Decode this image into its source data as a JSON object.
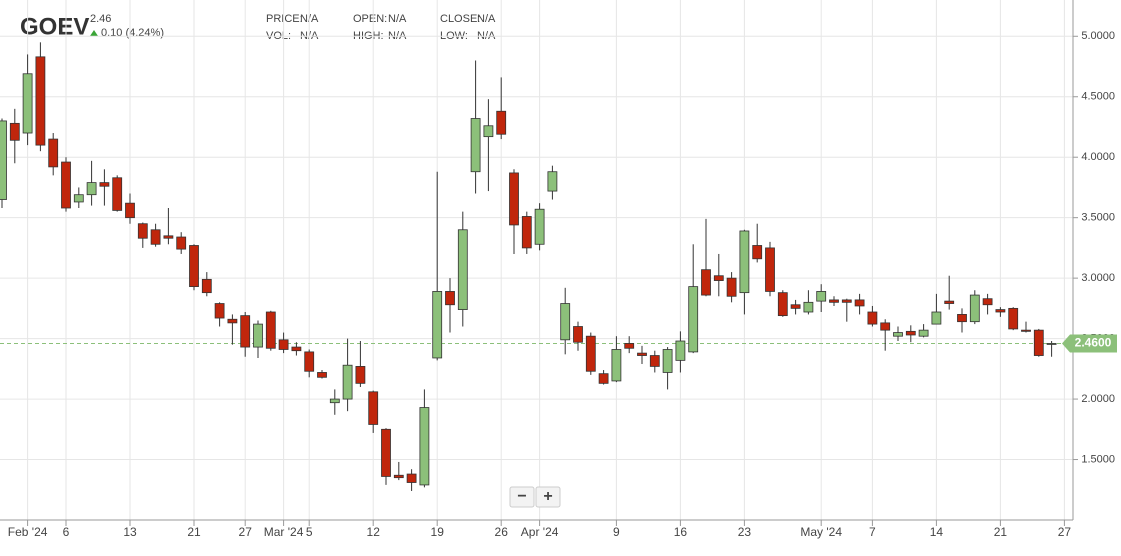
{
  "chart_data": {
    "type": "candlestick",
    "title": "GOEV",
    "price": 2.46,
    "change": "0.10 (4.24%)",
    "stats": [
      {
        "label": "PRICE:",
        "value": "N/A"
      },
      {
        "label": "VOL:",
        "value": "N/A"
      },
      {
        "label": "OPEN:",
        "value": "N/A"
      },
      {
        "label": "HIGH:",
        "value": "N/A"
      },
      {
        "label": "CLOSE:",
        "value": "N/A"
      },
      {
        "label": "LOW:",
        "value": "N/A"
      }
    ],
    "categories": [
      null,
      null,
      "Feb '24",
      null,
      null,
      "6",
      null,
      null,
      null,
      null,
      "13",
      null,
      null,
      null,
      null,
      "21",
      null,
      null,
      null,
      "27",
      null,
      null,
      "Mar '24",
      null,
      "5",
      null,
      null,
      null,
      null,
      "12",
      null,
      null,
      null,
      null,
      "19",
      null,
      null,
      null,
      null,
      "26",
      null,
      null,
      "Apr '24",
      null,
      null,
      null,
      null,
      null,
      "9",
      null,
      null,
      null,
      null,
      "16",
      null,
      null,
      null,
      null,
      "23",
      null,
      null,
      null,
      null,
      null,
      "May '24",
      null,
      null,
      null,
      "7",
      null,
      null,
      null,
      null,
      "14",
      null,
      null,
      null,
      null,
      "21",
      null,
      null,
      null,
      null,
      "27"
    ],
    "open": [
      3.65,
      4.28,
      4.2,
      4.83,
      4.15,
      3.96,
      3.63,
      3.69,
      3.79,
      3.83,
      3.62,
      3.45,
      3.4,
      3.35,
      3.34,
      3.27,
      2.99,
      2.79,
      2.66,
      2.69,
      2.43,
      2.72,
      2.49,
      2.43,
      2.39,
      2.22,
      1.97,
      2.0,
      2.27,
      2.06,
      1.75,
      1.37,
      1.38,
      1.29,
      2.34,
      2.89,
      2.74,
      3.88,
      4.17,
      4.38,
      3.87,
      3.51,
      3.28,
      3.72,
      2.49,
      2.6,
      2.52,
      2.21,
      2.15,
      2.46,
      2.38,
      2.36,
      2.22,
      2.32,
      2.39,
      3.07,
      3.02,
      3.0,
      2.88,
      3.27,
      3.25,
      2.88,
      2.78,
      2.72,
      2.81,
      2.82,
      2.82,
      2.82,
      2.72,
      2.63,
      2.52,
      2.56,
      2.52,
      2.62,
      2.81,
      2.7,
      2.64,
      2.83,
      2.74,
      2.75,
      2.57,
      2.57,
      2.46,
      null
    ],
    "high": [
      4.32,
      4.4,
      4.85,
      4.95,
      4.2,
      4.0,
      3.75,
      3.97,
      3.9,
      3.85,
      3.7,
      3.46,
      3.45,
      3.58,
      3.38,
      3.28,
      3.05,
      2.8,
      2.7,
      2.72,
      2.65,
      2.73,
      2.55,
      2.47,
      2.41,
      2.24,
      2.08,
      2.5,
      2.48,
      2.07,
      1.76,
      1.48,
      1.42,
      2.08,
      3.88,
      3.0,
      3.55,
      4.8,
      4.48,
      4.66,
      3.9,
      3.55,
      3.62,
      3.93,
      2.92,
      2.64,
      2.55,
      2.24,
      2.52,
      2.52,
      2.44,
      2.4,
      2.43,
      2.56,
      3.28,
      3.49,
      3.2,
      3.05,
      3.4,
      3.45,
      3.3,
      2.9,
      2.82,
      2.9,
      2.95,
      2.85,
      2.83,
      2.87,
      2.77,
      2.66,
      2.6,
      2.61,
      2.62,
      2.87,
      3.02,
      2.75,
      2.9,
      2.87,
      2.76,
      2.76,
      2.64,
      2.58,
      2.48,
      null
    ],
    "low": [
      3.58,
      3.95,
      4.1,
      4.05,
      3.85,
      3.55,
      3.58,
      3.6,
      3.6,
      3.55,
      3.45,
      3.25,
      3.26,
      3.28,
      3.2,
      2.9,
      2.85,
      2.6,
      2.45,
      2.35,
      2.34,
      2.4,
      2.38,
      2.36,
      2.18,
      2.17,
      1.87,
      1.9,
      2.1,
      1.72,
      1.29,
      1.33,
      1.24,
      1.27,
      2.32,
      2.55,
      2.6,
      3.7,
      3.72,
      4.15,
      3.2,
      3.2,
      3.23,
      3.65,
      2.37,
      2.4,
      2.2,
      2.12,
      2.14,
      2.38,
      2.29,
      2.22,
      2.08,
      2.22,
      2.38,
      2.85,
      2.85,
      2.8,
      2.7,
      3.13,
      2.85,
      2.68,
      2.7,
      2.7,
      2.72,
      2.77,
      2.64,
      2.7,
      2.6,
      2.4,
      2.48,
      2.47,
      2.51,
      2.62,
      2.74,
      2.55,
      2.62,
      2.7,
      2.68,
      2.57,
      2.55,
      2.35,
      2.35,
      null
    ],
    "close": [
      4.3,
      4.14,
      4.69,
      4.1,
      3.92,
      3.58,
      3.69,
      3.79,
      3.76,
      3.56,
      3.5,
      3.33,
      3.28,
      3.33,
      3.24,
      2.93,
      2.88,
      2.67,
      2.63,
      2.43,
      2.62,
      2.42,
      2.41,
      2.4,
      2.23,
      2.18,
      2.0,
      2.28,
      2.13,
      1.79,
      1.36,
      1.35,
      1.31,
      1.93,
      2.89,
      2.78,
      3.4,
      4.32,
      4.26,
      4.19,
      3.44,
      3.25,
      3.57,
      3.88,
      2.79,
      2.47,
      2.23,
      2.13,
      2.41,
      2.42,
      2.36,
      2.27,
      2.41,
      2.48,
      2.93,
      2.86,
      2.98,
      2.85,
      3.39,
      3.16,
      2.89,
      2.69,
      2.75,
      2.8,
      2.89,
      2.8,
      2.8,
      2.77,
      2.62,
      2.57,
      2.55,
      2.53,
      2.57,
      2.72,
      2.79,
      2.64,
      2.86,
      2.78,
      2.72,
      2.58,
      2.56,
      2.36,
      2.46,
      null
    ],
    "up_color": "#8cc07a",
    "down_color": "#c0260c",
    "ylim": [
      1.0,
      5.3
    ],
    "yticks": [
      {
        "value": 1.5,
        "label": "1.5000"
      },
      {
        "value": 2,
        "label": "2.0000"
      },
      {
        "value": 2.5,
        "label": "2.5000"
      },
      {
        "value": 3,
        "label": "3.0000"
      },
      {
        "value": 3.5,
        "label": "3.5000"
      },
      {
        "value": 4,
        "label": "4.0000"
      },
      {
        "value": 4.5,
        "label": "4.5000"
      },
      {
        "value": 5,
        "label": "5.0000"
      }
    ],
    "grid": true,
    "last_price": {
      "value": 2.46,
      "label": "2.4600"
    },
    "zoom_controls": [
      "−",
      "+"
    ]
  }
}
